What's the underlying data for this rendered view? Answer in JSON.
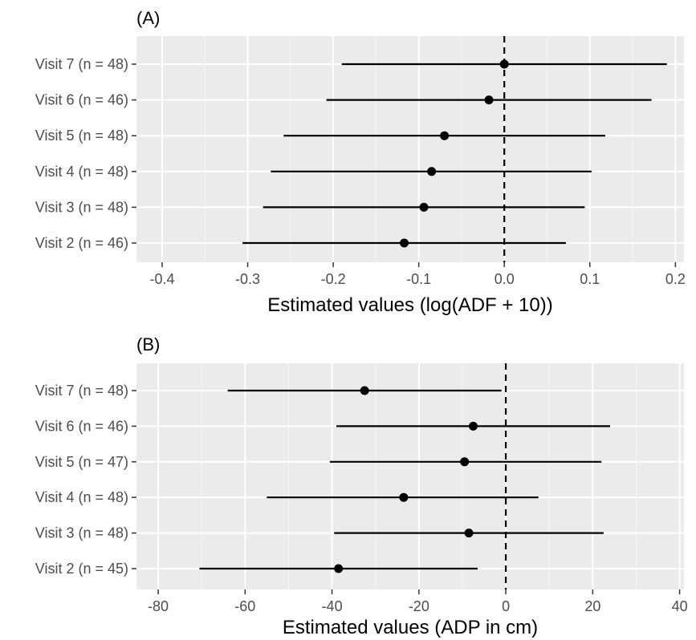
{
  "chart_data": [
    {
      "type": "forest",
      "panel_label": "(A)",
      "xlabel": "Estimated values (log(ADF + 10))",
      "ylabel": "",
      "xlim": [
        -0.43,
        0.21
      ],
      "xticks": [
        -0.4,
        -0.3,
        -0.2,
        -0.1,
        0.0,
        0.1,
        0.2
      ],
      "xtick_labels": [
        "-0.4",
        "-0.3",
        "-0.2",
        "-0.1",
        "0.0",
        "0.1",
        "0.2"
      ],
      "reference_line": 0,
      "grid": true,
      "categories": [
        "Visit 7 (n = 48)",
        "Visit 6 (n = 46)",
        "Visit 5 (n = 48)",
        "Visit 4 (n = 48)",
        "Visit 3 (n = 48)",
        "Visit 2 (n = 46)"
      ],
      "estimates": [
        0.0,
        -0.018,
        -0.07,
        -0.085,
        -0.094,
        -0.117
      ],
      "lower": [
        -0.19,
        -0.208,
        -0.258,
        -0.273,
        -0.282,
        -0.306
      ],
      "upper": [
        0.19,
        0.172,
        0.118,
        0.102,
        0.094,
        0.072
      ]
    },
    {
      "type": "forest",
      "panel_label": "(B)",
      "xlabel": "Estimated values (ADP in cm)",
      "ylabel": "",
      "xlim": [
        -85,
        41
      ],
      "xticks": [
        -80,
        -60,
        -40,
        -20,
        0,
        20,
        40
      ],
      "xtick_labels": [
        "-80",
        "-60",
        "-40",
        "-20",
        "0",
        "20",
        "40"
      ],
      "reference_line": 0,
      "grid": true,
      "categories": [
        "Visit 7 (n = 48)",
        "Visit 6 (n = 46)",
        "Visit 5 (n = 47)",
        "Visit 4 (n = 48)",
        "Visit 3 (n = 48)",
        "Visit 2 (n = 45)"
      ],
      "estimates": [
        -32.5,
        -7.5,
        -9.5,
        -23.5,
        -8.5,
        -38.5
      ],
      "lower": [
        -64,
        -39,
        -40.5,
        -55,
        -39.5,
        -70.5
      ],
      "upper": [
        -1,
        24,
        22,
        7.5,
        22.5,
        -6.5
      ]
    }
  ]
}
